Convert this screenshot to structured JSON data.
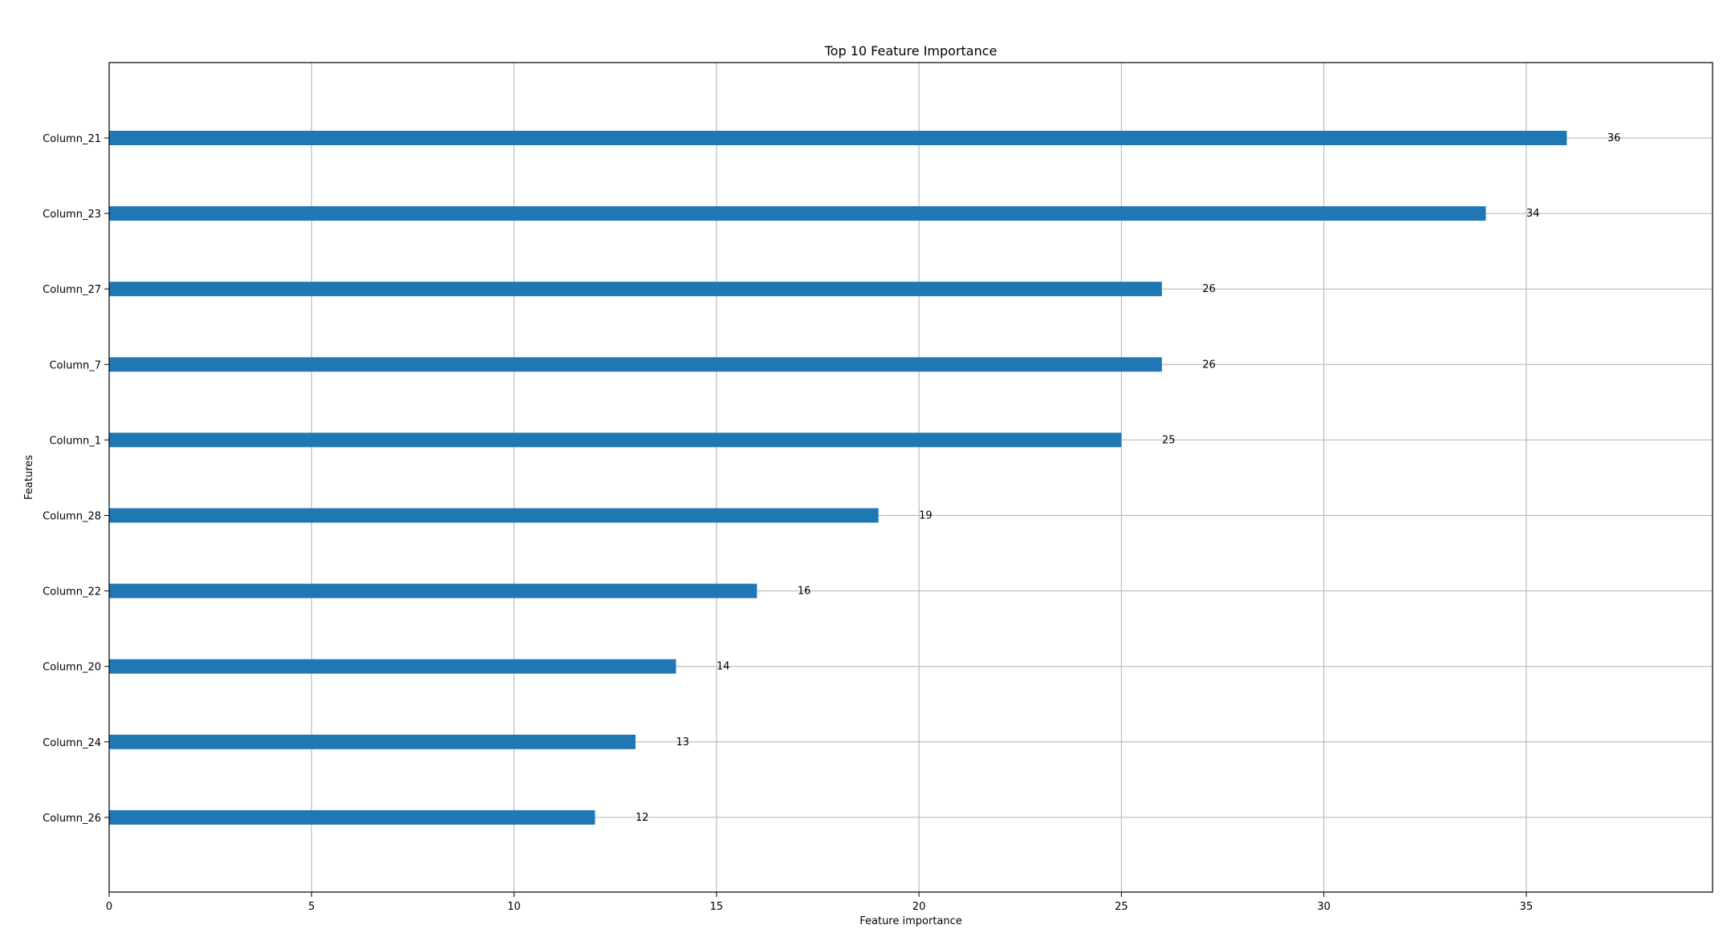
{
  "chart_data": {
    "type": "bar",
    "orientation": "horizontal",
    "title": "Top 10 Feature Importance",
    "xlabel": "Feature importance",
    "ylabel": "Features",
    "categories": [
      "Column_21",
      "Column_23",
      "Column_27",
      "Column_7",
      "Column_1",
      "Column_28",
      "Column_22",
      "Column_20",
      "Column_24",
      "Column_26"
    ],
    "values": [
      36,
      34,
      26,
      26,
      25,
      19,
      16,
      14,
      13,
      12
    ],
    "value_labels": [
      "36",
      "34",
      "26",
      "26",
      "25",
      "19",
      "16",
      "14",
      "13",
      "12"
    ],
    "xlim": [
      0,
      39.6
    ],
    "xticks": [
      0,
      5,
      10,
      15,
      20,
      25,
      30,
      35
    ],
    "xtick_labels": [
      "0",
      "5",
      "10",
      "15",
      "20",
      "25",
      "30",
      "35"
    ],
    "grid": true,
    "bar_color": "#1f77b4",
    "grid_color": "#b0b0b0"
  }
}
